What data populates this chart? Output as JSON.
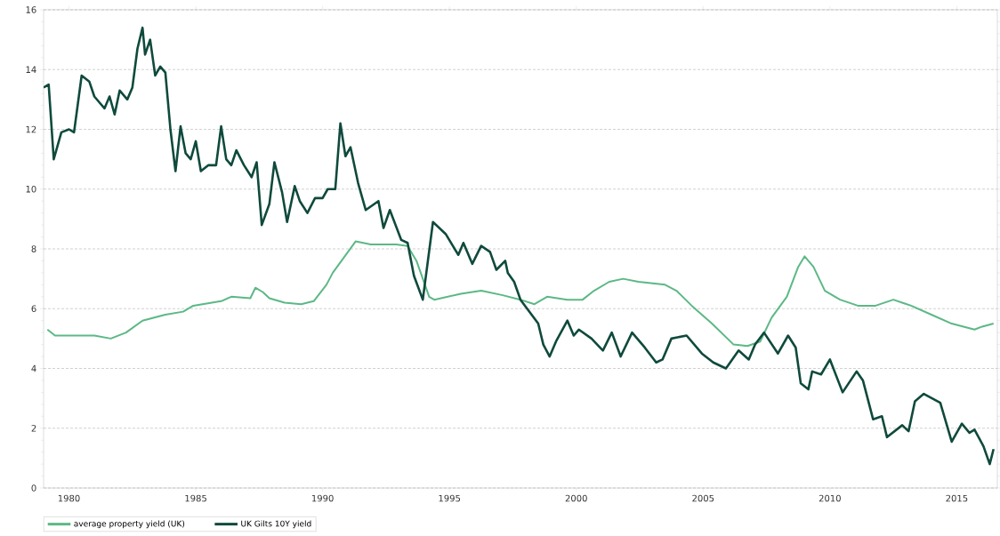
{
  "chart_data": {
    "type": "line",
    "xlim": [
      1979,
      2016.6
    ],
    "xticks": [
      1980,
      1985,
      1990,
      1995,
      2000,
      2005,
      2010,
      2015
    ],
    "ylim": [
      0,
      16
    ],
    "yticks": [
      0,
      2,
      4,
      6,
      8,
      10,
      12,
      14,
      16
    ],
    "grid": "y",
    "legend": "bottom left",
    "line_style": "solid",
    "marker": "none",
    "series": [
      {
        "name": "average property yield (UK)",
        "color": "#5cb885",
        "x": [
          1979.15,
          1979.45,
          1981.0,
          1981.65,
          1982.25,
          1982.9,
          1983.8,
          1984.5,
          1984.9,
          1986.0,
          1986.4,
          1987.15,
          1987.35,
          1987.65,
          1987.9,
          1988.5,
          1989.15,
          1989.65,
          1990.15,
          1990.4,
          1991.3,
          1991.9,
          1992.9,
          1993.35,
          1993.7,
          1994.2,
          1994.4,
          1995.45,
          1996.25,
          1997.1,
          1997.8,
          1998.35,
          1998.85,
          1999.65,
          2000.25,
          2000.7,
          2001.3,
          2001.85,
          2002.45,
          2003.5,
          2003.95,
          2004.55,
          2005.35,
          2006.2,
          2006.75,
          2007.25,
          2007.7,
          2008.3,
          2008.75,
          2009.0,
          2009.35,
          2009.8,
          2010.4,
          2011.1,
          2011.8,
          2012.5,
          2013.2,
          2014.0,
          2014.8,
          2015.7,
          2016.0,
          2016.45
        ],
        "values": [
          5.3,
          5.1,
          5.1,
          5.0,
          5.2,
          5.6,
          5.8,
          5.9,
          6.1,
          6.25,
          6.4,
          6.35,
          6.7,
          6.55,
          6.35,
          6.2,
          6.15,
          6.25,
          6.8,
          7.2,
          8.25,
          8.15,
          8.15,
          8.1,
          7.6,
          6.4,
          6.3,
          6.5,
          6.6,
          6.45,
          6.3,
          6.15,
          6.4,
          6.3,
          6.3,
          6.6,
          6.9,
          7.0,
          6.9,
          6.8,
          6.6,
          6.1,
          5.5,
          4.8,
          4.75,
          4.9,
          5.7,
          6.4,
          7.4,
          7.75,
          7.4,
          6.6,
          6.3,
          6.1,
          6.1,
          6.3,
          6.1,
          5.8,
          5.5,
          5.3,
          5.4,
          5.5
        ]
      },
      {
        "name": "UK Gilts 10Y yield",
        "color": "#0f4a3c",
        "x": [
          1979.0,
          1979.2,
          1979.4,
          1979.7,
          1980.0,
          1980.2,
          1980.5,
          1980.8,
          1981.0,
          1981.2,
          1981.4,
          1981.6,
          1981.8,
          1982.0,
          1982.3,
          1982.5,
          1982.7,
          1982.9,
          1983.0,
          1983.2,
          1983.4,
          1983.6,
          1983.8,
          1984.0,
          1984.2,
          1984.4,
          1984.6,
          1984.8,
          1985.0,
          1985.2,
          1985.5,
          1985.8,
          1986.0,
          1986.2,
          1986.4,
          1986.6,
          1986.9,
          1987.2,
          1987.4,
          1987.6,
          1987.9,
          1988.1,
          1988.4,
          1988.6,
          1988.9,
          1989.1,
          1989.4,
          1989.7,
          1990.0,
          1990.2,
          1990.5,
          1990.7,
          1990.9,
          1991.1,
          1991.4,
          1991.7,
          1992.2,
          1992.4,
          1992.65,
          1993.1,
          1993.35,
          1993.6,
          1993.95,
          1994.35,
          1994.85,
          1995.35,
          1995.55,
          1995.9,
          1996.25,
          1996.6,
          1996.85,
          1997.2,
          1997.3,
          1997.55,
          1997.8,
          1998.5,
          1998.7,
          1998.95,
          1999.2,
          1999.65,
          1999.9,
          2000.1,
          2000.6,
          2001.05,
          2001.4,
          2001.75,
          2002.2,
          2002.7,
          2003.15,
          2003.4,
          2003.75,
          2004.35,
          2004.95,
          2005.4,
          2005.9,
          2006.4,
          2006.8,
          2007.05,
          2007.4,
          2007.95,
          2008.35,
          2008.65,
          2008.85,
          2009.15,
          2009.3,
          2009.65,
          2010.0,
          2010.5,
          2011.05,
          2011.3,
          2011.7,
          2012.05,
          2012.25,
          2012.85,
          2013.1,
          2013.35,
          2013.7,
          2014.35,
          2014.8,
          2015.2,
          2015.5,
          2015.7,
          2016.05,
          2016.3,
          2016.45
        ],
        "values": [
          13.4,
          13.5,
          11.0,
          11.9,
          12.0,
          11.9,
          13.8,
          13.6,
          13.1,
          12.9,
          12.7,
          13.1,
          12.5,
          13.3,
          13.0,
          13.4,
          14.7,
          15.4,
          14.5,
          15.0,
          13.8,
          14.1,
          13.9,
          12.0,
          10.6,
          12.1,
          11.2,
          11.0,
          11.6,
          10.6,
          10.8,
          10.8,
          12.1,
          11.0,
          10.8,
          11.3,
          10.8,
          10.4,
          10.9,
          8.8,
          9.5,
          10.9,
          9.9,
          8.9,
          10.1,
          9.6,
          9.2,
          9.7,
          9.7,
          10.0,
          10.0,
          12.2,
          11.1,
          11.4,
          10.2,
          9.3,
          9.6,
          8.7,
          9.3,
          8.3,
          8.2,
          7.1,
          6.3,
          8.9,
          8.5,
          7.8,
          8.2,
          7.5,
          8.1,
          7.9,
          7.3,
          7.6,
          7.2,
          6.9,
          6.3,
          5.5,
          4.8,
          4.4,
          4.9,
          5.6,
          5.1,
          5.3,
          5.0,
          4.6,
          5.2,
          4.4,
          5.2,
          4.7,
          4.2,
          4.3,
          5.0,
          5.1,
          4.5,
          4.2,
          4.0,
          4.6,
          4.3,
          4.8,
          5.2,
          4.5,
          5.1,
          4.7,
          3.5,
          3.3,
          3.9,
          3.8,
          4.3,
          3.2,
          3.9,
          3.6,
          2.3,
          2.4,
          1.7,
          2.1,
          1.9,
          2.9,
          3.15,
          2.85,
          1.55,
          2.15,
          1.85,
          1.95,
          1.4,
          0.8,
          1.3
        ]
      }
    ]
  }
}
